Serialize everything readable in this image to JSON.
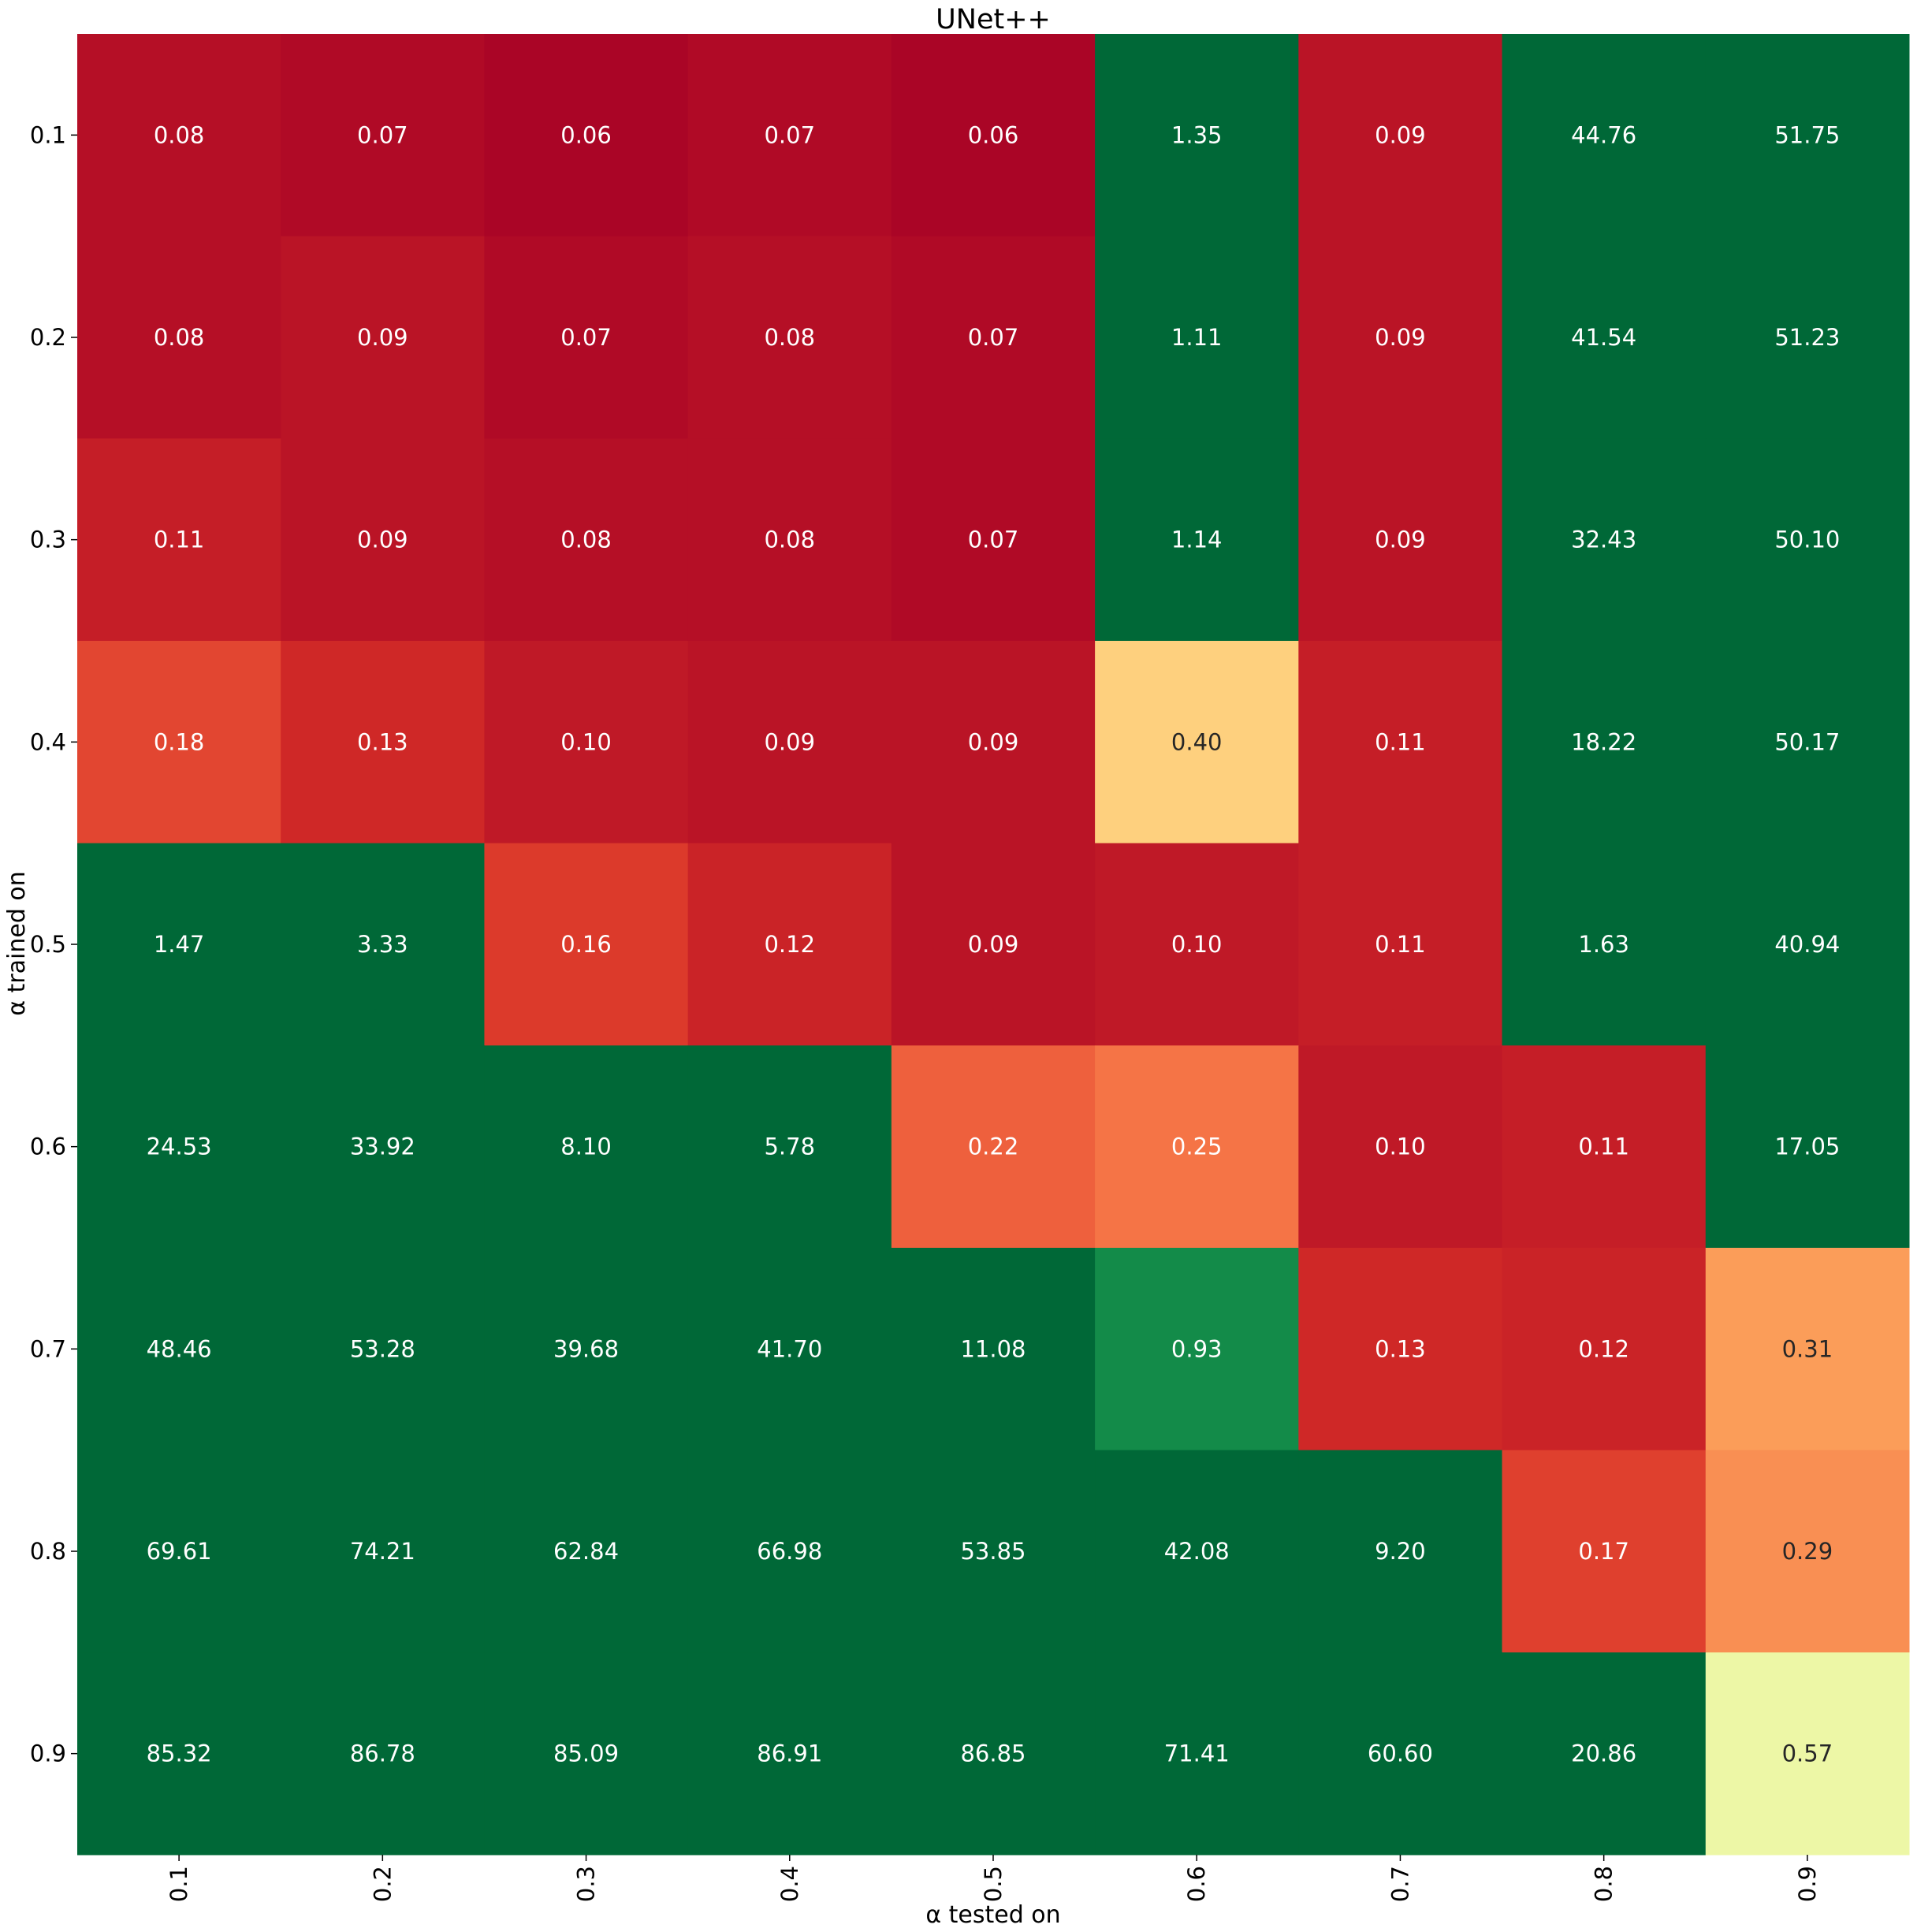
{
  "chart_data": {
    "type": "heatmap",
    "title": "UNet++",
    "xlabel": "α tested on",
    "ylabel": "α trained on",
    "x_categories": [
      "0.1",
      "0.2",
      "0.3",
      "0.4",
      "0.5",
      "0.6",
      "0.7",
      "0.8",
      "0.9"
    ],
    "y_categories": [
      "0.1",
      "0.2",
      "0.3",
      "0.4",
      "0.5",
      "0.6",
      "0.7",
      "0.8",
      "0.9"
    ],
    "values": [
      [
        0.08,
        0.07,
        0.06,
        0.07,
        0.06,
        1.35,
        0.09,
        44.76,
        51.75
      ],
      [
        0.08,
        0.09,
        0.07,
        0.08,
        0.07,
        1.11,
        0.09,
        41.54,
        51.23
      ],
      [
        0.11,
        0.09,
        0.08,
        0.08,
        0.07,
        1.14,
        0.09,
        32.43,
        50.1
      ],
      [
        0.18,
        0.13,
        0.1,
        0.09,
        0.09,
        0.4,
        0.11,
        18.22,
        50.17
      ],
      [
        1.47,
        3.33,
        0.16,
        0.12,
        0.09,
        0.1,
        0.11,
        1.63,
        40.94
      ],
      [
        24.53,
        33.92,
        8.1,
        5.78,
        0.22,
        0.25,
        0.1,
        0.11,
        17.05
      ],
      [
        48.46,
        53.28,
        39.68,
        41.7,
        11.08,
        0.93,
        0.13,
        0.12,
        0.31
      ],
      [
        69.61,
        74.21,
        62.84,
        66.98,
        53.85,
        42.08,
        9.2,
        0.17,
        0.29
      ],
      [
        85.32,
        86.78,
        85.09,
        86.91,
        86.85,
        71.41,
        60.6,
        20.86,
        0.57
      ]
    ],
    "value_format": "2 decimals",
    "colormap": "RdYlGn",
    "color_range": [
      0.05,
      1.0
    ],
    "colorbar": false,
    "grid": false
  }
}
